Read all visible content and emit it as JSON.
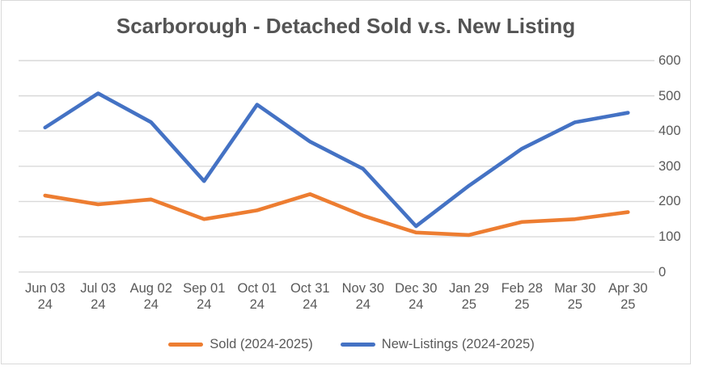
{
  "chart_data": {
    "type": "line",
    "title": "Scarborough - Detached Sold v.s. New Listing",
    "categories": [
      "Jun 03 24",
      "Jul 03 24",
      "Aug 02 24",
      "Sep 01 24",
      "Oct 01 24",
      "Oct 31 24",
      "Nov 30 24",
      "Dec 30 24",
      "Jan 29 25",
      "Feb 28 25",
      "Mar 30 25",
      "Apr 30 25"
    ],
    "series": [
      {
        "name": "Sold (2024-2025)",
        "color": "#ED7D31",
        "values": [
          217,
          192,
          206,
          150,
          175,
          221,
          160,
          112,
          105,
          142,
          150,
          170
        ]
      },
      {
        "name": "New-Listings (2024-2025)",
        "color": "#4472C4",
        "values": [
          410,
          507,
          425,
          258,
          475,
          370,
          293,
          130,
          245,
          350,
          425,
          452
        ]
      }
    ],
    "y_axis": {
      "min": 0,
      "max": 600,
      "step": 100,
      "ticks": [
        "0",
        "100",
        "200",
        "300",
        "400",
        "500",
        "600"
      ],
      "side": "right"
    },
    "grid": true,
    "legend_position": "bottom",
    "colors": {
      "gridline": "#D9D9D9",
      "axis_text": "#595959",
      "title_text": "#545454",
      "frame_border": "#D9D9D9",
      "background": "#FFFFFF"
    }
  }
}
